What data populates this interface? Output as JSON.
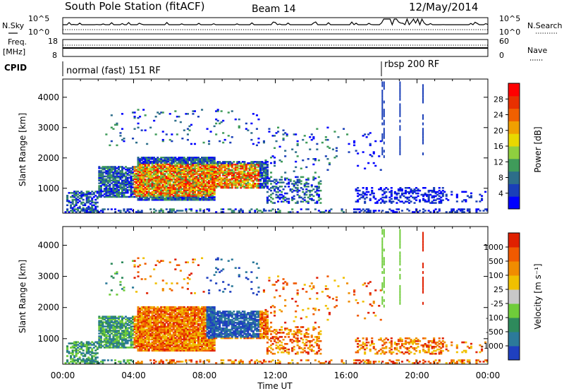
{
  "header": {
    "station": "South Pole Station (fitACF)",
    "beam": "Beam 14",
    "date": "12/May/2014"
  },
  "summary_panels": {
    "nsky_label": "N.Sky",
    "nsky_ticks": [
      "10^5",
      "10^0"
    ],
    "nsearch_label": "N.Search",
    "nsearch_ticks": [
      "10^5",
      "10^0"
    ],
    "freq_label_1": "Freq.",
    "freq_label_2": "[MHz]",
    "freq_ticks": [
      "18",
      "8"
    ],
    "nave_label": "Nave",
    "nave_ticks": [
      "60",
      "0"
    ],
    "cpid_label": "CPID",
    "cpid_segments": [
      {
        "text": "normal (fast) 151 RF",
        "start_hour": 0
      },
      {
        "text": "rbsp 200 RF",
        "start_hour": 18
      }
    ]
  },
  "chart_data": [
    {
      "type": "heatmap",
      "title": "",
      "quantity": "Power",
      "xlabel": "Time UT",
      "ylabel": "Slant Range [km]",
      "x_ticks": [
        "00:00",
        "04:00",
        "08:00",
        "12:00",
        "16:00",
        "20:00",
        "00:00"
      ],
      "y_ticks": [
        "1000",
        "2000",
        "3000",
        "4000"
      ],
      "xlim_hours": [
        0,
        24
      ],
      "ylim_km": [
        180,
        4600
      ],
      "colorbar": {
        "label": "Power [dB]",
        "ticks": [
          "4",
          "8",
          "12",
          "16",
          "20",
          "24",
          "28"
        ],
        "colors": [
          "#0000ff",
          "#1a3fb8",
          "#2d6e8a",
          "#3f9b5a",
          "#8fcf3f",
          "#e8d800",
          "#f0a000",
          "#f06000",
          "#e83000",
          "#ff0000"
        ]
      }
    },
    {
      "type": "heatmap",
      "title": "",
      "quantity": "Velocity",
      "xlabel": "Time UT",
      "ylabel": "Slant Range [km]",
      "x_ticks": [
        "00:00",
        "04:00",
        "08:00",
        "12:00",
        "16:00",
        "20:00",
        "00:00"
      ],
      "y_ticks": [
        "1000",
        "2000",
        "3000",
        "4000"
      ],
      "xlim_hours": [
        0,
        24
      ],
      "ylim_km": [
        180,
        4600
      ],
      "colorbar": {
        "label": "Velocity [m s⁻¹]",
        "ticks": [
          "1000",
          "500",
          "100",
          "25",
          "-25",
          "-100",
          "-500",
          "-1000"
        ],
        "colors": [
          "#1f40c0",
          "#2c7a9a",
          "#2e8a5c",
          "#6fcc3a",
          "#c8c8c8",
          "#f0c000",
          "#f08c00",
          "#f05a00",
          "#e02000"
        ]
      }
    }
  ]
}
